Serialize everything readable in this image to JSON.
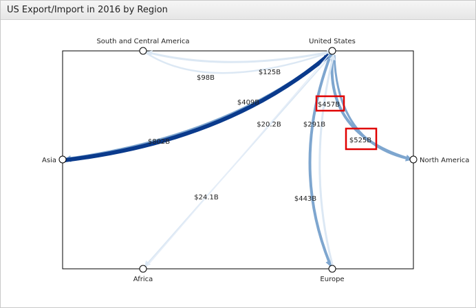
{
  "window": {
    "title": "US Export/Import in 2016 by Region"
  },
  "nodes": [
    {
      "id": "us",
      "label": "United States"
    },
    {
      "id": "sca",
      "label": "South and Central America"
    },
    {
      "id": "asia",
      "label": "Asia"
    },
    {
      "id": "na",
      "label": "North America"
    },
    {
      "id": "africa",
      "label": "Africa"
    },
    {
      "id": "europe",
      "label": "Europe"
    }
  ],
  "flows": [
    {
      "id": "f-us-sca",
      "label": "$125B"
    },
    {
      "id": "f-sca-us",
      "label": "$98B"
    },
    {
      "id": "f-us-asia",
      "label": "$409B"
    },
    {
      "id": "f-asia-us",
      "label": "$802B"
    },
    {
      "id": "f-us-africa",
      "label": "$20.2B"
    },
    {
      "id": "f-africa-us",
      "label": "$24.1B"
    },
    {
      "id": "f-us-na",
      "label": "$457B"
    },
    {
      "id": "f-na-us",
      "label": "$525B"
    },
    {
      "id": "f-us-europe",
      "label": "$291B"
    },
    {
      "id": "f-europe-us",
      "label": "$443B"
    }
  ],
  "colors": {
    "dark_flow": "#0a3a8c",
    "mid_flow": "#7ea6cf",
    "light_flow": "#dce8f4",
    "highlight": "#e00000"
  }
}
